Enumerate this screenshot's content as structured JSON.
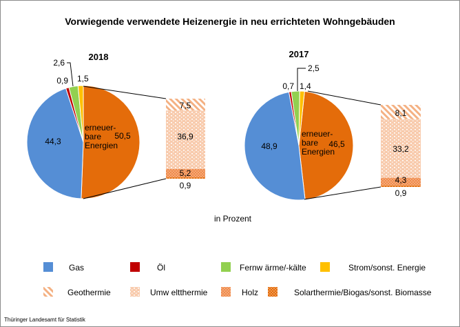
{
  "chart_data": [
    {
      "type": "pie",
      "title": "Vorwiegende verwendete Heizenergie in neu errichteten Wohngebäuden",
      "subtitle": "2018",
      "unit": "in Prozent",
      "slices": [
        {
          "name": "erneuerbare Energien",
          "value": 50.5,
          "label": "50,5",
          "color": "#E46C0A"
        },
        {
          "name": "Gas",
          "value": 44.3,
          "label": "44,3",
          "color": "#558ED5"
        },
        {
          "name": "Öl",
          "value": 0.9,
          "label": "0,9",
          "color": "#C00000"
        },
        {
          "name": "Fernwärme/-kälte",
          "value": 2.6,
          "label": "2,6",
          "color": "#92D050"
        },
        {
          "name": "Strom/sonst. Energie",
          "value": 1.5,
          "label": "1,5",
          "color": "#FFC000"
        }
      ],
      "breakdown": {
        "of": "erneuerbare Energien",
        "type": "stacked-bar",
        "segments": [
          {
            "name": "Geothermie",
            "value": 7.5,
            "label": "7,5"
          },
          {
            "name": "Umweltthermie",
            "value": 36.9,
            "label": "36,9"
          },
          {
            "name": "Holz",
            "value": 5.2,
            "label": "5,2"
          },
          {
            "name": "Solarthermie/Biogas/sonst. Biomasse",
            "value": 0.9,
            "label": "0,9"
          }
        ]
      }
    },
    {
      "type": "pie",
      "subtitle": "2017",
      "slices": [
        {
          "name": "erneuerbare Energien",
          "value": 46.5,
          "label": "46,5",
          "color": "#E46C0A"
        },
        {
          "name": "Gas",
          "value": 48.9,
          "label": "48,9",
          "color": "#558ED5"
        },
        {
          "name": "Öl",
          "value": 0.7,
          "label": "0,7",
          "color": "#C00000"
        },
        {
          "name": "Fernwärme/-kälte",
          "value": 2.5,
          "label": "2,5",
          "color": "#92D050"
        },
        {
          "name": "Strom/sonst. Energie",
          "value": 1.4,
          "label": "1,4",
          "color": "#FFC000"
        }
      ],
      "breakdown": {
        "of": "erneuerbare Energien",
        "type": "stacked-bar",
        "segments": [
          {
            "name": "Geothermie",
            "value": 8.1,
            "label": "8,1"
          },
          {
            "name": "Umweltthermie",
            "value": 33.2,
            "label": "33,2"
          },
          {
            "name": "Holz",
            "value": 4.3,
            "label": "4,3"
          },
          {
            "name": "Solarthermie/Biogas/sonst. Biomasse",
            "value": 0.9,
            "label": "0,9"
          }
        ]
      }
    }
  ],
  "title": "Vorwiegende verwendete Heizenergie in neu errichteten Wohngebäuden",
  "unit_label": "in Prozent",
  "renewables_label": [
    "erneuer-",
    "bare",
    "Energien"
  ],
  "legend": [
    {
      "label": "Gas",
      "color": "#558ED5",
      "pattern": "solid"
    },
    {
      "label": "Öl",
      "color": "#C00000",
      "pattern": "solid"
    },
    {
      "label": "Fernw ärme/-kälte",
      "color": "#92D050",
      "pattern": "solid"
    },
    {
      "label": "Strom/sonst. Energie",
      "color": "#FFC000",
      "pattern": "solid"
    },
    {
      "label": "Geothermie",
      "color": "#F4B183",
      "pattern": "diagonal"
    },
    {
      "label": "Umw eltthermie",
      "color": "#F8CBAD",
      "pattern": "bricks-light"
    },
    {
      "label": "Holz",
      "color": "#F08A4B",
      "pattern": "dots"
    },
    {
      "label": "Solarthermie/Biogas/sonst. Biomasse",
      "color": "#E46C0A",
      "pattern": "dots-dense"
    }
  ],
  "source": "Thüringer  Landesamt für Statistik"
}
